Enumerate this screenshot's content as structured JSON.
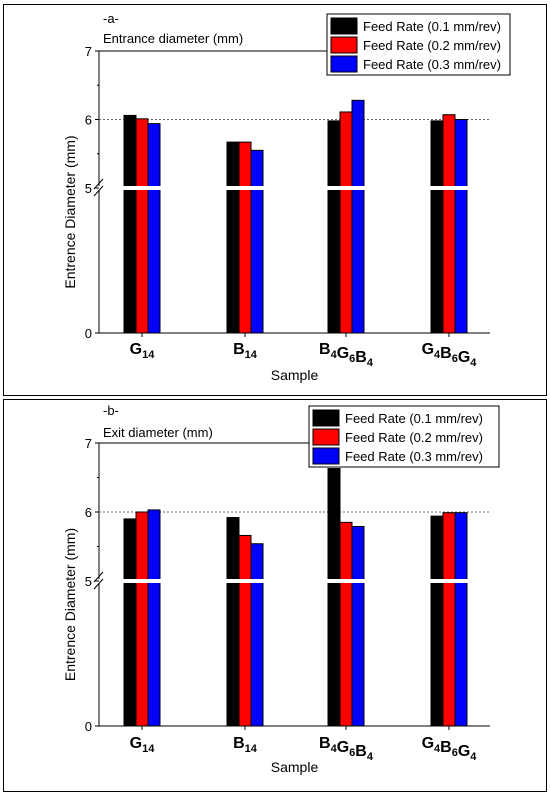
{
  "chart_data": [
    {
      "type": "bar",
      "panel_label": "-a-",
      "title": "Entrance diameter (mm)",
      "xlabel": "Sample",
      "ylabel": "Entrence Diameter (mm)",
      "categories": [
        {
          "main": "G",
          "sub": "14"
        },
        {
          "main": "B",
          "sub": "14"
        },
        {
          "parts": [
            [
              "B",
              "4"
            ],
            [
              "G",
              "6"
            ],
            [
              "B",
              "4"
            ]
          ]
        },
        {
          "parts": [
            [
              "G",
              "4"
            ],
            [
              "B",
              "6"
            ],
            [
              "G",
              "4"
            ]
          ]
        }
      ],
      "category_labels": [
        "G14",
        "B14",
        "B4G6B4",
        "G4B6G4"
      ],
      "axis_break": {
        "lower": [
          0,
          5
        ],
        "upper": [
          5,
          7
        ]
      },
      "yticks": [
        "0",
        "5",
        "6",
        "7"
      ],
      "reference_line": 6,
      "legend_position": "top-right",
      "series": [
        {
          "name": "Feed Rate (0.1 mm/rev)",
          "color": "#000000",
          "values": [
            6.06,
            5.67,
            5.98,
            5.98
          ]
        },
        {
          "name": "Feed Rate (0.2 mm/rev)",
          "color": "#ff0000",
          "values": [
            6.01,
            5.67,
            6.11,
            6.07
          ]
        },
        {
          "name": "Feed Rate (0.3 mm/rev)",
          "color": "#0000ff",
          "values": [
            5.94,
            5.55,
            6.28,
            6.0
          ]
        }
      ]
    },
    {
      "type": "bar",
      "panel_label": "-b-",
      "title": "Exit diameter (mm)",
      "xlabel": "Sample",
      "ylabel": "Entrence Diameter (mm)",
      "categories": [
        {
          "main": "G",
          "sub": "14"
        },
        {
          "main": "B",
          "sub": "14"
        },
        {
          "parts": [
            [
              "B",
              "4"
            ],
            [
              "G",
              "6"
            ],
            [
              "B",
              "4"
            ]
          ]
        },
        {
          "parts": [
            [
              "G",
              "4"
            ],
            [
              "B",
              "6"
            ],
            [
              "G",
              "4"
            ]
          ]
        }
      ],
      "category_labels": [
        "G14",
        "B14",
        "B4G6B4",
        "G4B6G4"
      ],
      "axis_break": {
        "lower": [
          0,
          5
        ],
        "upper": [
          5,
          7
        ]
      },
      "yticks": [
        "0",
        "5",
        "6",
        "7"
      ],
      "reference_line": 6,
      "legend_position": "top-right",
      "series": [
        {
          "name": "Feed Rate (0.1 mm/rev)",
          "color": "#000000",
          "values": [
            5.9,
            5.92,
            6.63,
            5.94
          ]
        },
        {
          "name": "Feed Rate (0.2 mm/rev)",
          "color": "#ff0000",
          "values": [
            6.0,
            5.66,
            5.85,
            5.99
          ]
        },
        {
          "name": "Feed Rate (0.3 mm/rev)",
          "color": "#0000ff",
          "values": [
            6.03,
            5.54,
            5.79,
            5.99
          ]
        }
      ]
    }
  ]
}
